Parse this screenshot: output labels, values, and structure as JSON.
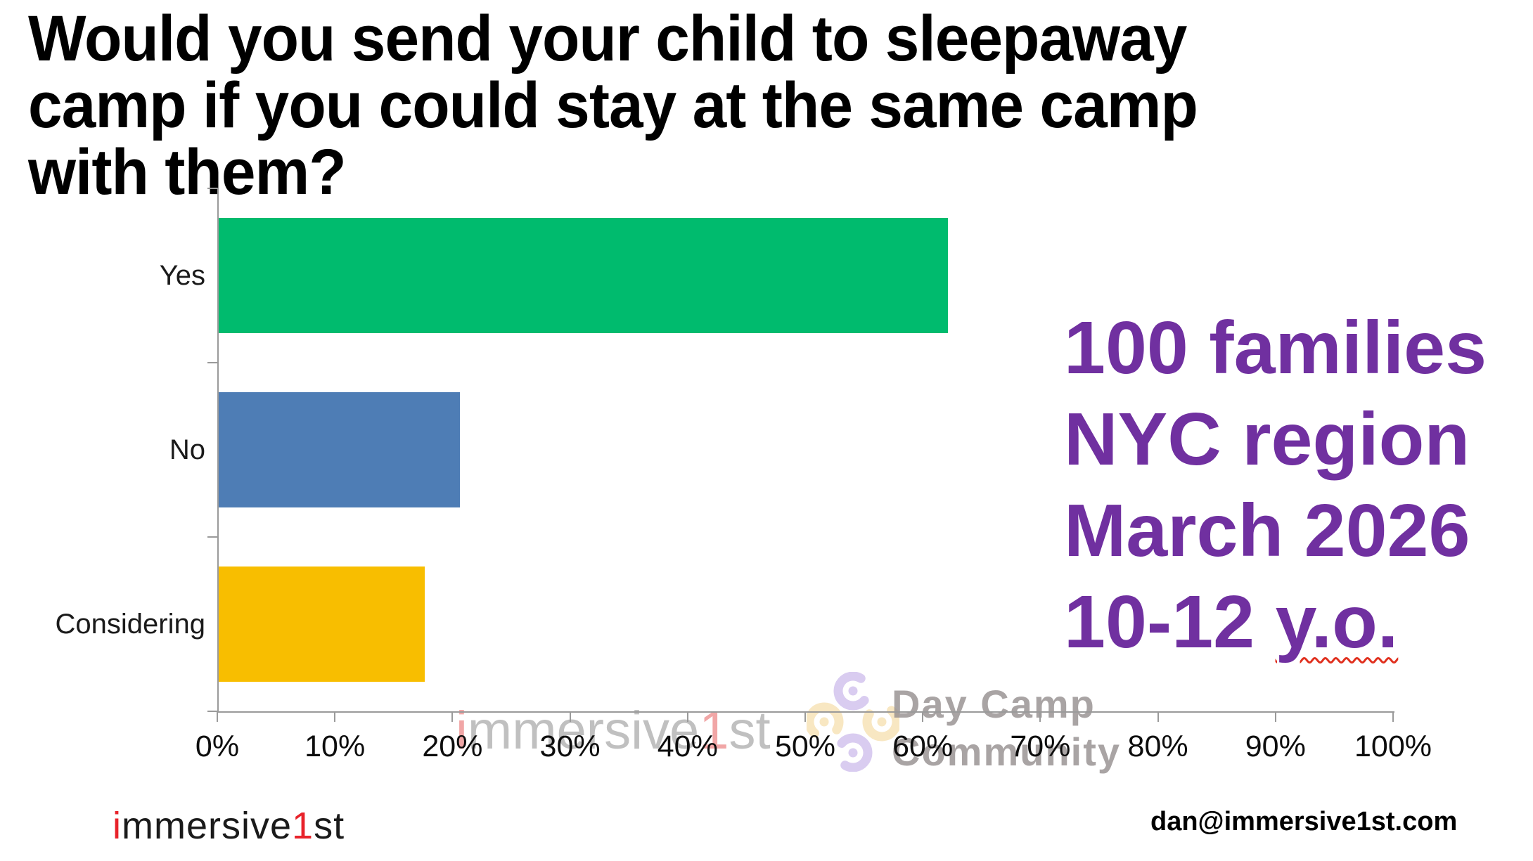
{
  "title": {
    "lines": [
      "Would you send your child to sleepaway",
      "camp if you could stay at the same camp",
      "with them?"
    ]
  },
  "chart_data": {
    "type": "bar",
    "orientation": "horizontal",
    "title": "Would you send your child to sleepaway camp if you could stay at the same camp with them?",
    "categories": [
      "Yes",
      "No",
      "Considering"
    ],
    "values": [
      62,
      20.5,
      17.5
    ],
    "unit": "%",
    "bar_colors": [
      "#00BB6E",
      "#4E7DB5",
      "#F8BE00"
    ],
    "x_ticks": [
      "0%",
      "10%",
      "20%",
      "30%",
      "40%",
      "50%",
      "60%",
      "70%",
      "80%",
      "90%",
      "100%"
    ],
    "xlim": [
      0,
      100
    ],
    "xlabel": "",
    "ylabel": "",
    "grid": false,
    "legend": false
  },
  "side_note": {
    "lines": [
      "100 families",
      "NYC region",
      "March 2026"
    ],
    "last_line_prefix": "10-12 ",
    "last_line_underlined": "y.o.",
    "color": "#7030A0"
  },
  "brand": {
    "first_letter": "i",
    "middle": "mmersive",
    "digit": "1",
    "suffix": "st"
  },
  "daycamp_logo": {
    "line1": "Day Camp",
    "line2": "Community"
  },
  "footer": {
    "email": "dan@immersive1st.com"
  },
  "colors": {
    "purple_note": "#7030A0",
    "bar_green": "#00BB6E",
    "bar_blue": "#4E7DB5",
    "bar_yellow": "#F8BE00",
    "axis_gray": "#9a9a9a",
    "accent_red": "#e8222a"
  }
}
